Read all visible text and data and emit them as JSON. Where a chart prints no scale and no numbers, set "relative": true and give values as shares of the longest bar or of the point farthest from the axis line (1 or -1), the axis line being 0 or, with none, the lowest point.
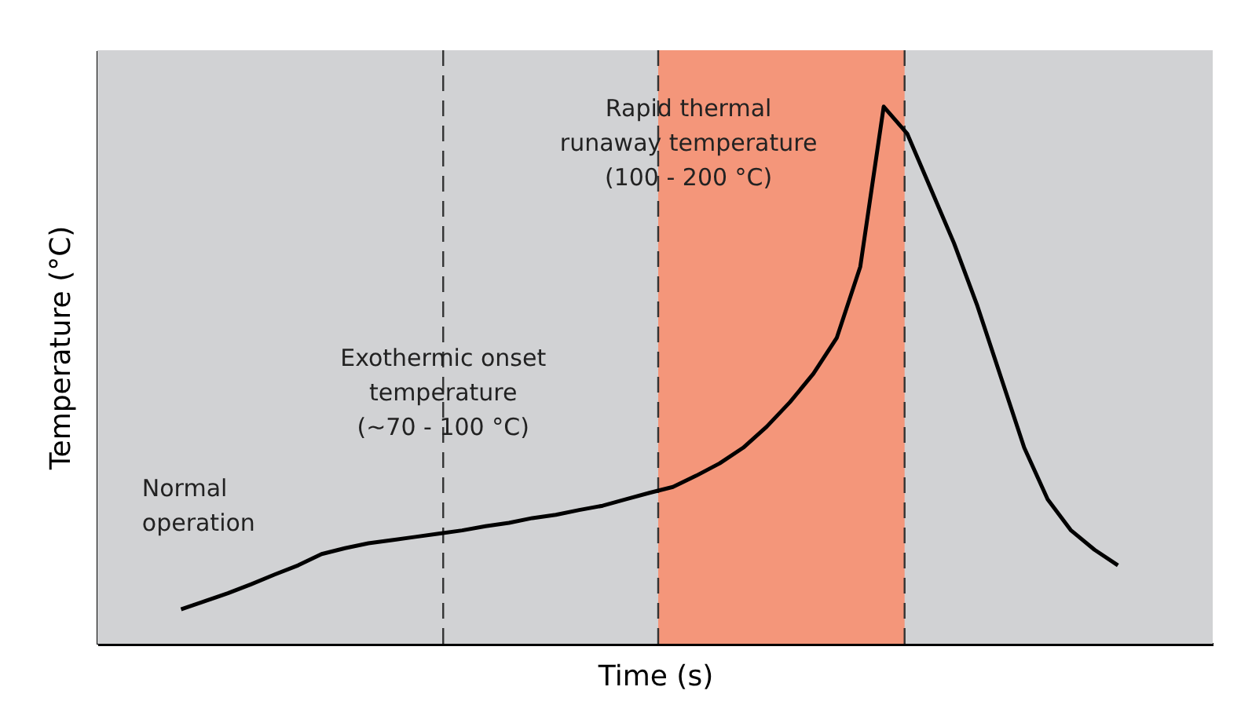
{
  "chart_data": {
    "type": "line",
    "relative": true,
    "xlabel": "Time (s)",
    "ylabel": "Temperature (°C)",
    "tick_labels": false,
    "categories": [
      null,
      null,
      null,
      null,
      null,
      null,
      null,
      null,
      null,
      null,
      null,
      null,
      null,
      null,
      null,
      null,
      null,
      null,
      null,
      null,
      null,
      null,
      null,
      null,
      null,
      null,
      null,
      null,
      null,
      null,
      null,
      null,
      null,
      null,
      null,
      null,
      null,
      null,
      null,
      null,
      null
    ],
    "series": [
      {
        "color": "#000000",
        "values": [
          0.064,
          0.079,
          0.094,
          0.111,
          0.129,
          0.146,
          0.167,
          0.178,
          0.187,
          0.193,
          0.199,
          0.205,
          0.211,
          0.219,
          0.225,
          0.234,
          0.24,
          0.249,
          0.257,
          0.269,
          0.281,
          0.292,
          0.313,
          0.336,
          0.365,
          0.404,
          0.45,
          0.503,
          0.57,
          0.702,
          1,
          0.95,
          0.848,
          0.746,
          0.629,
          0.497,
          0.365,
          0.269,
          0.211,
          0.175,
          0.146
        ]
      }
    ],
    "annotations": [
      "Normal\noperation",
      "Exothermic onset\ntemperature\n(~70 - 100 °C)",
      "Rapid thermal\nrunaway temperature\n(100 - 200 °C)"
    ]
  }
}
